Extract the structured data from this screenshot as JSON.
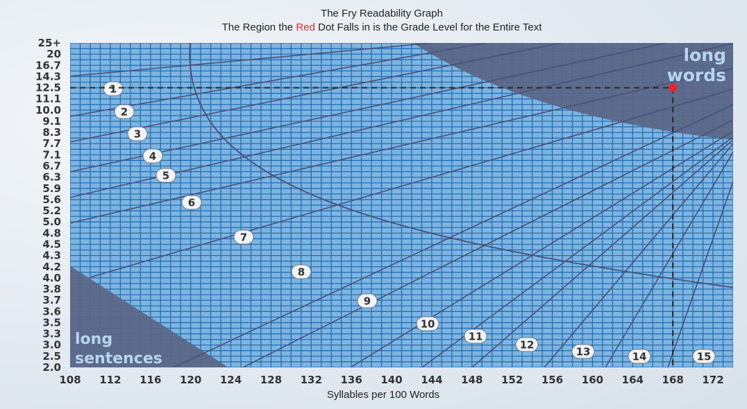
{
  "chart_data": {
    "type": "scatter",
    "title": "The Fry Readability Graph",
    "subtitle_parts": [
      "The Region the ",
      "Red",
      " Dot Falls in is the Grade Level for the Entire Text"
    ],
    "xlabel": "Syllables per 100 Words",
    "ylabel": "",
    "x_ticks": [
      "108",
      "112",
      "116",
      "120",
      "124",
      "128",
      "132",
      "136",
      "140",
      "144",
      "148",
      "152",
      "156",
      "160",
      "164",
      "168",
      "172"
    ],
    "y_ticks": [
      "25+",
      "20",
      "16.7",
      "14.3",
      "12.5",
      "11.1",
      "10.0",
      "9.1",
      "8.3",
      "7.7",
      "7.1",
      "6.7",
      "6.3",
      "5.9",
      "5.6",
      "5.2",
      "5.0",
      "4.8",
      "4.5",
      "4.3",
      "4.2",
      "4.0",
      "3.8",
      "3.7",
      "3.6",
      "3.5",
      "3.3",
      "3.0",
      "2.5",
      "2.0"
    ],
    "xlim": [
      108,
      174
    ],
    "grade_labels": [
      "1",
      "2",
      "3",
      "4",
      "5",
      "6",
      "7",
      "8",
      "9",
      "10",
      "11",
      "12",
      "13",
      "14",
      "15"
    ],
    "region_labels": {
      "long_words": [
        "long",
        "words"
      ],
      "long_sentences": [
        "long",
        "sentences"
      ]
    },
    "point": {
      "x": 168,
      "y": "12.5",
      "color": "#e8242b"
    },
    "colors": {
      "plot": "#7fb4e0",
      "grid": "#1f6fb5",
      "region": "#5a6685",
      "lines": "#4a4f7a",
      "point": "#e8242b"
    }
  }
}
